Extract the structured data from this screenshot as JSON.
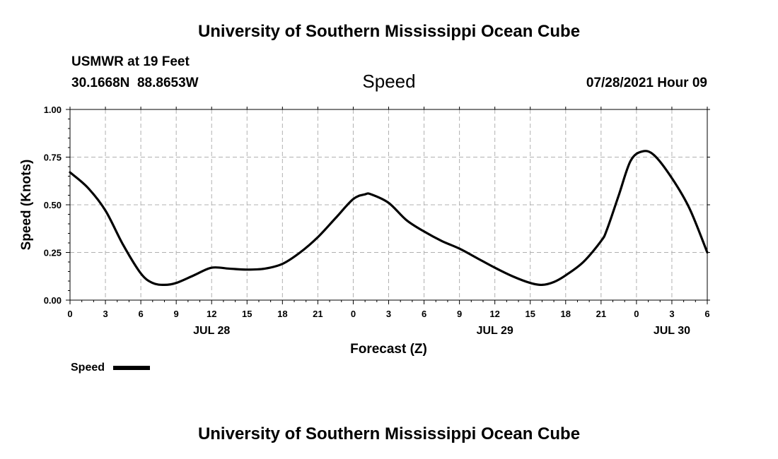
{
  "header": {
    "title_top": "University of Southern Mississippi Ocean Cube",
    "title_bottom": "University of Southern Mississippi Ocean Cube",
    "station": "USMWR at 19 Feet",
    "coordinates": "30.1668N  88.8653W",
    "datetime": "07/28/2021 Hour 09"
  },
  "chart_data": {
    "type": "line",
    "title": "Speed",
    "xlabel": "Forecast (Z)",
    "ylabel": "Speed (Knots)",
    "ylim": [
      0,
      1
    ],
    "y_ticks": [
      "0.00",
      "0.25",
      "0.50",
      "0.75",
      "1.00"
    ],
    "x_ticks": [
      {
        "hour": 0,
        "label": "0"
      },
      {
        "hour": 3,
        "label": "3"
      },
      {
        "hour": 6,
        "label": "6"
      },
      {
        "hour": 9,
        "label": "9"
      },
      {
        "hour": 12,
        "label": "12"
      },
      {
        "hour": 15,
        "label": "15"
      },
      {
        "hour": 18,
        "label": "18"
      },
      {
        "hour": 21,
        "label": "21"
      },
      {
        "hour": 24,
        "label": "0"
      },
      {
        "hour": 27,
        "label": "3"
      },
      {
        "hour": 30,
        "label": "6"
      },
      {
        "hour": 33,
        "label": "9"
      },
      {
        "hour": 36,
        "label": "12"
      },
      {
        "hour": 39,
        "label": "15"
      },
      {
        "hour": 42,
        "label": "18"
      },
      {
        "hour": 45,
        "label": "21"
      },
      {
        "hour": 48,
        "label": "0"
      },
      {
        "hour": 51,
        "label": "3"
      },
      {
        "hour": 54,
        "label": "6"
      }
    ],
    "date_labels": [
      {
        "hour": 12,
        "label": "JUL 28"
      },
      {
        "hour": 36,
        "label": "JUL 29"
      },
      {
        "hour": 51,
        "label": "JUL 30"
      }
    ],
    "xlim": [
      0,
      54
    ],
    "grid": true,
    "legend": "bottom-left",
    "series": [
      {
        "name": "Speed",
        "color": "#000000",
        "x": [
          0,
          1.5,
          3,
          4.5,
          6,
          7,
          8,
          9,
          10.5,
          12,
          13.5,
          15,
          16.5,
          18,
          19.5,
          21,
          22.5,
          24,
          25,
          25.5,
          27,
          28.5,
          30,
          31.5,
          33,
          34.5,
          36,
          37.5,
          39,
          40,
          41,
          42,
          43.5,
          45,
          45.5,
          46.5,
          47.5,
          48.5,
          49.5,
          51,
          52.5,
          54
        ],
        "y": [
          0.67,
          0.59,
          0.47,
          0.29,
          0.14,
          0.09,
          0.08,
          0.09,
          0.13,
          0.17,
          0.165,
          0.16,
          0.165,
          0.19,
          0.25,
          0.33,
          0.43,
          0.53,
          0.555,
          0.555,
          0.51,
          0.42,
          0.36,
          0.31,
          0.27,
          0.22,
          0.17,
          0.125,
          0.09,
          0.08,
          0.095,
          0.13,
          0.2,
          0.31,
          0.37,
          0.55,
          0.73,
          0.78,
          0.76,
          0.64,
          0.48,
          0.25
        ]
      }
    ]
  }
}
